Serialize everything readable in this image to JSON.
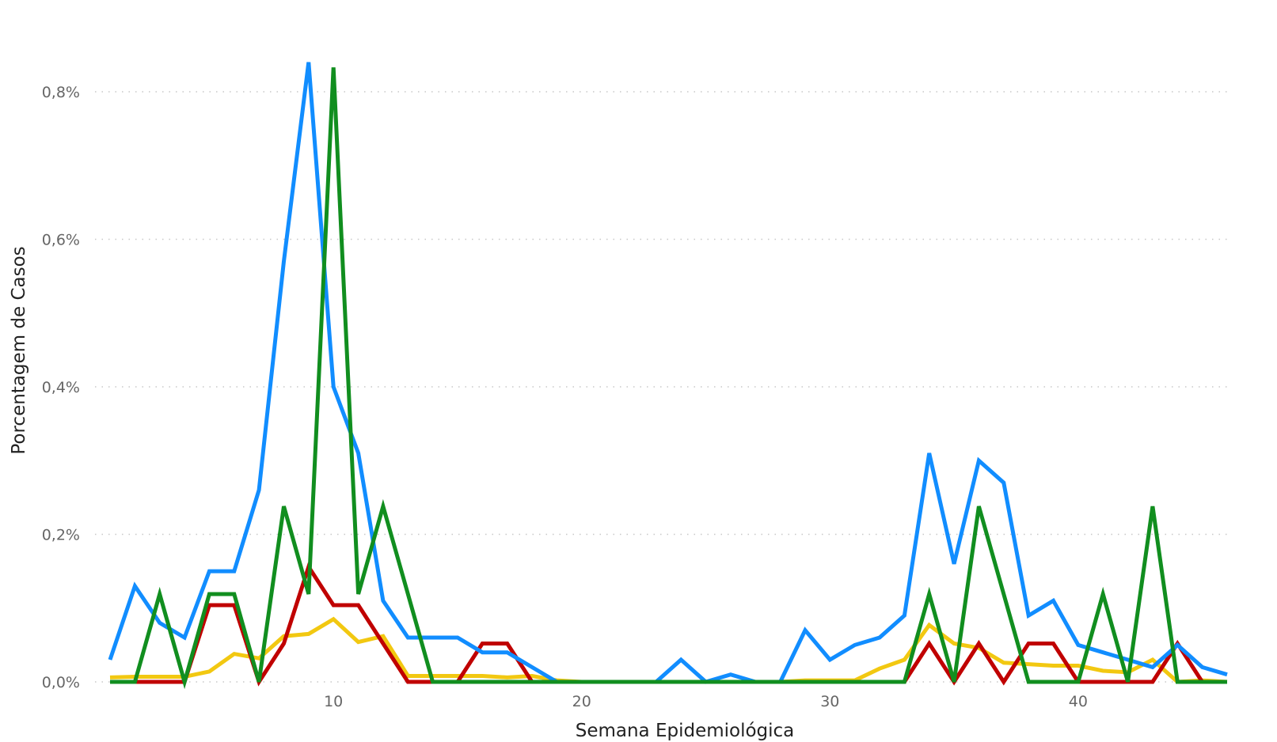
{
  "chart_data": {
    "type": "line",
    "xlabel": "Semana Epidemiológica",
    "ylabel": "Porcentagem de Casos",
    "xlim": [
      1,
      46
    ],
    "ylim": [
      0,
      0.8
    ],
    "x_ticks": [
      10,
      20,
      30,
      40
    ],
    "x_tick_labels": [
      "10",
      "20",
      "30",
      "40"
    ],
    "y_ticks": [
      0,
      0.2,
      0.4,
      0.6,
      0.8
    ],
    "y_tick_labels": [
      "0,0%",
      "0,2%",
      "0,4%",
      "0,6%",
      "0,8%"
    ],
    "grid": "horizontal dotted",
    "legend": "none",
    "x": [
      1,
      2,
      3,
      4,
      5,
      6,
      7,
      8,
      9,
      10,
      11,
      12,
      13,
      14,
      15,
      16,
      17,
      18,
      19,
      20,
      21,
      22,
      23,
      24,
      25,
      26,
      27,
      28,
      29,
      30,
      31,
      32,
      33,
      34,
      35,
      36,
      37,
      38,
      39,
      40,
      41,
      42,
      43,
      44,
      45,
      46
    ],
    "series": [
      {
        "color": "#F2C811",
        "values": [
          0.006,
          0.007,
          0.007,
          0.007,
          0.014,
          0.038,
          0.032,
          0.062,
          0.065,
          0.085,
          0.054,
          0.062,
          0.008,
          0.008,
          0.008,
          0.008,
          0.006,
          0.008,
          0.002,
          0,
          0,
          0,
          0,
          0,
          0,
          0,
          0,
          0,
          0.002,
          0.002,
          0.002,
          0.018,
          0.03,
          0.077,
          0.052,
          0.046,
          0.026,
          0.024,
          0.022,
          0.022,
          0.015,
          0.013,
          0.03,
          0,
          0.002,
          0
        ]
      },
      {
        "color": "#C00000",
        "values": [
          0,
          0,
          0,
          0,
          0.104,
          0.104,
          0,
          0.052,
          0.156,
          0.104,
          0.104,
          0.052,
          0,
          0,
          0,
          0.052,
          0.052,
          0,
          0,
          0,
          0,
          0,
          0,
          0,
          0,
          0,
          0,
          0,
          0,
          0,
          0,
          0,
          0,
          0.052,
          0,
          0.052,
          0,
          0.052,
          0.052,
          0,
          0,
          0,
          0,
          0.052,
          0,
          0
        ]
      },
      {
        "color": "#118DFF",
        "values": [
          0.03,
          0.13,
          0.08,
          0.06,
          0.15,
          0.15,
          0.26,
          0.57,
          0.84,
          0.4,
          0.31,
          0.11,
          0.06,
          0.06,
          0.06,
          0.04,
          0.04,
          0.02,
          0,
          0,
          0,
          0,
          0,
          0.03,
          0,
          0.01,
          0,
          0,
          0.07,
          0.03,
          0.05,
          0.06,
          0.09,
          0.31,
          0.16,
          0.3,
          0.27,
          0.09,
          0.11,
          0.05,
          0.04,
          0.03,
          0.02,
          0.05,
          0.02,
          0.01
        ]
      },
      {
        "color": "#118E1F",
        "values": [
          0,
          0,
          0.119,
          0,
          0.119,
          0.119,
          0,
          0.238,
          0.119,
          0.833,
          0.119,
          0.238,
          0.119,
          0,
          0,
          0,
          0,
          0,
          0,
          0,
          0,
          0,
          0,
          0,
          0,
          0,
          0,
          0,
          0,
          0,
          0,
          0,
          0,
          0.119,
          0,
          0.238,
          0.119,
          0,
          0,
          0,
          0.119,
          0,
          0.238,
          0,
          0,
          0
        ]
      }
    ]
  }
}
